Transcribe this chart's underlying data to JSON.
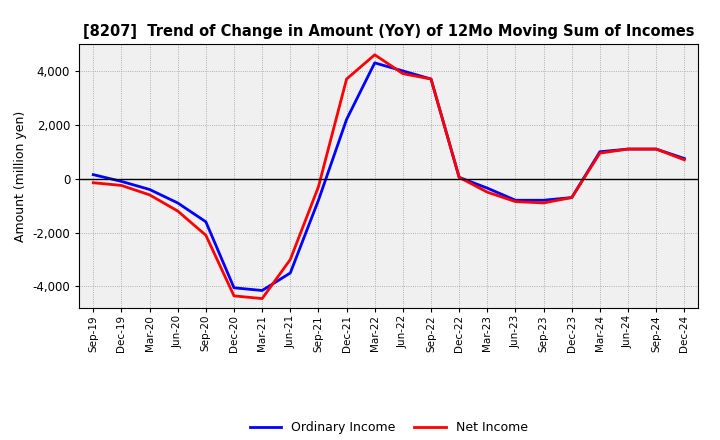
{
  "title": "[8207]  Trend of Change in Amount (YoY) of 12Mo Moving Sum of Incomes",
  "ylabel": "Amount (million yen)",
  "x_labels": [
    "Sep-19",
    "Dec-19",
    "Mar-20",
    "Jun-20",
    "Sep-20",
    "Dec-20",
    "Mar-21",
    "Jun-21",
    "Sep-21",
    "Dec-21",
    "Mar-22",
    "Jun-22",
    "Sep-22",
    "Dec-22",
    "Mar-23",
    "Jun-23",
    "Sep-23",
    "Dec-23",
    "Mar-24",
    "Jun-24",
    "Sep-24",
    "Dec-24"
  ],
  "ordinary_income": [
    150,
    -100,
    -400,
    -900,
    -1600,
    -4050,
    -4150,
    -3500,
    -800,
    2200,
    4300,
    4000,
    3700,
    50,
    -350,
    -800,
    -800,
    -700,
    1000,
    1100,
    1100,
    750
  ],
  "net_income": [
    -150,
    -250,
    -600,
    -1200,
    -2100,
    -4350,
    -4450,
    -3000,
    -300,
    3700,
    4600,
    3900,
    3700,
    50,
    -500,
    -850,
    -900,
    -700,
    950,
    1100,
    1100,
    700
  ],
  "ordinary_color": "#0000ff",
  "net_color": "#ff0000",
  "ylim": [
    -4800,
    5000
  ],
  "yticks": [
    -4000,
    -2000,
    0,
    2000,
    4000
  ],
  "background_color": "#ffffff",
  "plot_bg_color": "#f0f0f0",
  "grid_color": "#999999",
  "line_width": 2.0,
  "legend_ordinary": "Ordinary Income",
  "legend_net": "Net Income"
}
